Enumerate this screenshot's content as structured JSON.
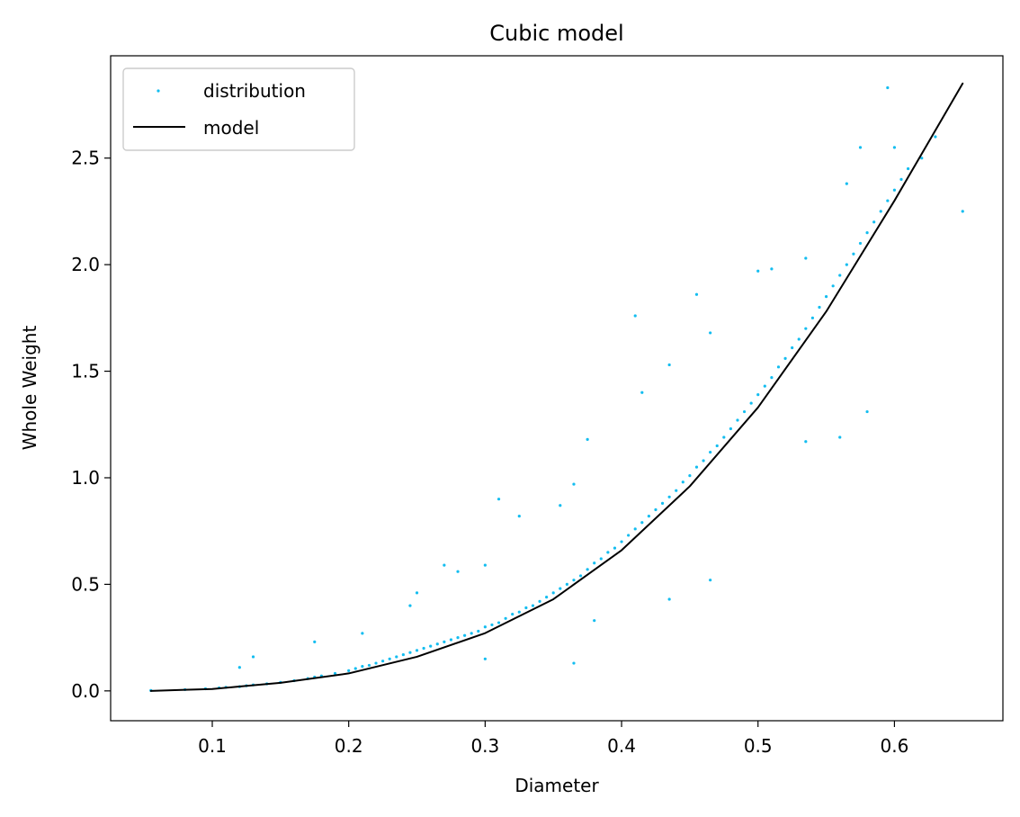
{
  "chart_data": {
    "type": "scatter",
    "title": "Cubic model",
    "xlabel": "Diameter",
    "ylabel": "Whole Weight",
    "xlim": [
      0.0255,
      0.6795
    ],
    "ylim": [
      -0.14,
      2.98
    ],
    "xticks": [
      0.1,
      0.2,
      0.3,
      0.4,
      0.5,
      0.6
    ],
    "xtick_labels": [
      "0.1",
      "0.2",
      "0.3",
      "0.4",
      "0.5",
      "0.6"
    ],
    "yticks": [
      0.0,
      0.5,
      1.0,
      1.5,
      2.0,
      2.5
    ],
    "ytick_labels": [
      "0.0",
      "0.5",
      "1.0",
      "1.5",
      "2.0",
      "2.5"
    ],
    "grid": false,
    "legend": {
      "position": "top-left",
      "entries": [
        "distribution",
        "model"
      ]
    },
    "series": [
      {
        "name": "distribution",
        "kind": "scatter",
        "color": "#13BDF0",
        "x": [
          0.055,
          0.08,
          0.095,
          0.105,
          0.11,
          0.12,
          0.125,
          0.13,
          0.14,
          0.15,
          0.16,
          0.17,
          0.175,
          0.18,
          0.19,
          0.2,
          0.205,
          0.21,
          0.215,
          0.22,
          0.225,
          0.23,
          0.235,
          0.24,
          0.245,
          0.25,
          0.255,
          0.26,
          0.265,
          0.27,
          0.275,
          0.28,
          0.285,
          0.29,
          0.295,
          0.3,
          0.305,
          0.31,
          0.315,
          0.32,
          0.325,
          0.33,
          0.335,
          0.34,
          0.345,
          0.35,
          0.355,
          0.36,
          0.365,
          0.37,
          0.375,
          0.38,
          0.385,
          0.39,
          0.395,
          0.4,
          0.405,
          0.41,
          0.415,
          0.42,
          0.425,
          0.43,
          0.435,
          0.44,
          0.445,
          0.45,
          0.455,
          0.46,
          0.465,
          0.47,
          0.475,
          0.48,
          0.485,
          0.49,
          0.495,
          0.5,
          0.505,
          0.51,
          0.515,
          0.52,
          0.525,
          0.53,
          0.535,
          0.54,
          0.545,
          0.55,
          0.555,
          0.56,
          0.565,
          0.57,
          0.575,
          0.58,
          0.585,
          0.59,
          0.595,
          0.6,
          0.605,
          0.61,
          0.62,
          0.63,
          0.65,
          0.12,
          0.13,
          0.175,
          0.21,
          0.245,
          0.25,
          0.27,
          0.28,
          0.3,
          0.31,
          0.325,
          0.355,
          0.365,
          0.375,
          0.41,
          0.415,
          0.435,
          0.455,
          0.465,
          0.5,
          0.51,
          0.535,
          0.565,
          0.575,
          0.595,
          0.6,
          0.3,
          0.365,
          0.38,
          0.435,
          0.465,
          0.535,
          0.56,
          0.58
        ],
        "y": [
          0.002,
          0.006,
          0.01,
          0.014,
          0.017,
          0.02,
          0.024,
          0.028,
          0.033,
          0.04,
          0.048,
          0.058,
          0.065,
          0.07,
          0.082,
          0.095,
          0.105,
          0.115,
          0.12,
          0.13,
          0.14,
          0.15,
          0.16,
          0.17,
          0.18,
          0.19,
          0.2,
          0.21,
          0.22,
          0.23,
          0.24,
          0.25,
          0.26,
          0.27,
          0.28,
          0.3,
          0.31,
          0.32,
          0.34,
          0.36,
          0.37,
          0.39,
          0.4,
          0.42,
          0.44,
          0.46,
          0.48,
          0.5,
          0.52,
          0.54,
          0.57,
          0.6,
          0.62,
          0.65,
          0.67,
          0.7,
          0.73,
          0.76,
          0.79,
          0.82,
          0.85,
          0.88,
          0.91,
          0.94,
          0.98,
          1.01,
          1.05,
          1.08,
          1.12,
          1.15,
          1.19,
          1.23,
          1.27,
          1.31,
          1.35,
          1.39,
          1.43,
          1.47,
          1.52,
          1.56,
          1.61,
          1.65,
          1.7,
          1.75,
          1.8,
          1.85,
          1.9,
          1.95,
          2.0,
          2.05,
          2.1,
          2.15,
          2.2,
          2.25,
          2.3,
          2.35,
          2.4,
          2.45,
          2.5,
          2.6,
          2.25,
          0.11,
          0.16,
          0.23,
          0.27,
          0.4,
          0.46,
          0.59,
          0.56,
          0.59,
          0.9,
          0.82,
          0.87,
          0.97,
          1.18,
          1.76,
          1.4,
          1.53,
          1.86,
          1.68,
          1.97,
          1.98,
          2.03,
          2.38,
          2.55,
          2.83,
          2.55,
          0.15,
          0.13,
          0.33,
          0.43,
          0.52,
          1.17,
          1.19,
          1.31
        ]
      },
      {
        "name": "model",
        "kind": "line",
        "color": "#000000",
        "x": [
          0.055,
          0.08,
          0.1,
          0.15,
          0.2,
          0.25,
          0.3,
          0.35,
          0.4,
          0.45,
          0.5,
          0.55,
          0.6,
          0.65
        ],
        "y": [
          0.0,
          0.005,
          0.009,
          0.038,
          0.082,
          0.16,
          0.271,
          0.43,
          0.66,
          0.96,
          1.33,
          1.78,
          2.3,
          2.85
        ]
      }
    ]
  }
}
